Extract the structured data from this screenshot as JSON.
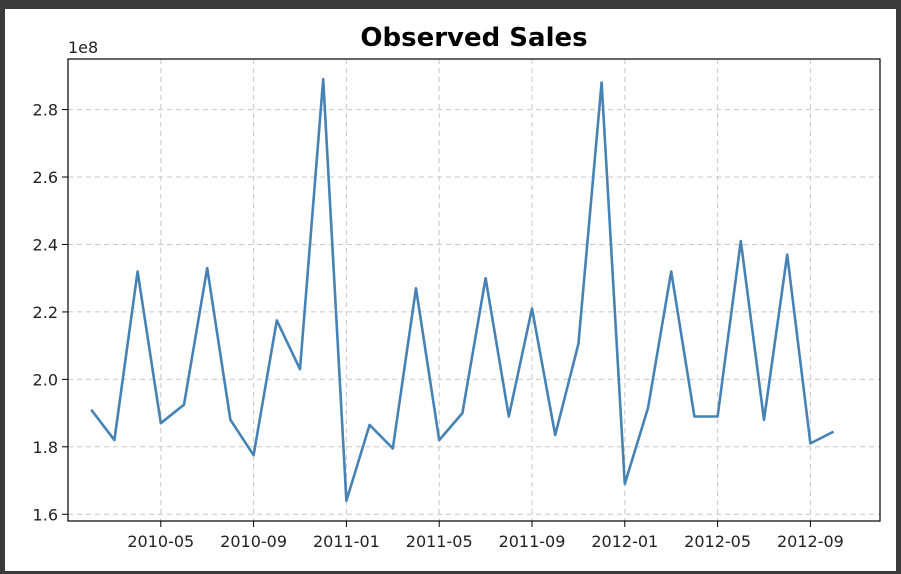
{
  "chart_data": {
    "type": "line",
    "title": "Observed Sales",
    "xlabel": "",
    "ylabel": "",
    "y_offset_label": "1e8",
    "x": [
      "2010-02",
      "2010-03",
      "2010-04",
      "2010-05",
      "2010-06",
      "2010-07",
      "2010-08",
      "2010-09",
      "2010-10",
      "2010-11",
      "2010-12",
      "2011-01",
      "2011-02",
      "2011-03",
      "2011-04",
      "2011-05",
      "2011-06",
      "2011-07",
      "2011-08",
      "2011-09",
      "2011-10",
      "2011-11",
      "2011-12",
      "2012-01",
      "2012-02",
      "2012-03",
      "2012-04",
      "2012-05",
      "2012-06",
      "2012-07",
      "2012-08",
      "2012-09",
      "2012-10"
    ],
    "series": [
      {
        "values": [
          1.91,
          1.82,
          2.32,
          1.87,
          1.925,
          2.33,
          1.88,
          1.775,
          2.175,
          2.03,
          2.89,
          1.64,
          1.865,
          1.795,
          2.27,
          1.82,
          1.9,
          2.3,
          1.89,
          2.21,
          1.835,
          2.105,
          2.88,
          1.69,
          1.915,
          2.32,
          1.89,
          1.89,
          2.41,
          1.88,
          2.37,
          1.81,
          1.845
        ],
        "color": "#4682b4"
      }
    ],
    "x_ticks": [
      "2010-05",
      "2010-09",
      "2011-01",
      "2011-05",
      "2011-09",
      "2012-01",
      "2012-05",
      "2012-09"
    ],
    "y_ticks": [
      "1.6",
      "1.8",
      "2.0",
      "2.2",
      "2.4",
      "2.6",
      "2.8"
    ],
    "ylim": [
      1.58,
      2.95
    ],
    "xlim": [
      "2010-01",
      "2012-12"
    ],
    "grid": true
  }
}
